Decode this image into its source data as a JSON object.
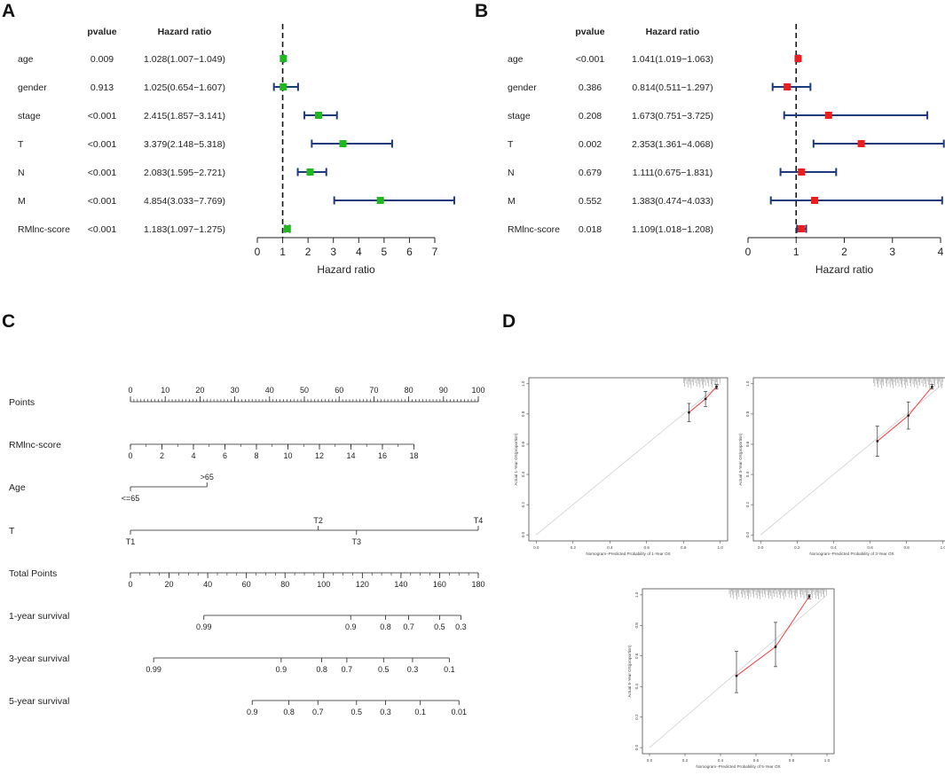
{
  "chart_data": [
    {
      "type": "forest",
      "panel": "A",
      "header_pvalue": "pvalue",
      "header_hr": "Hazard ratio",
      "xlabel": "Hazard ratio",
      "xlim": [
        0,
        7
      ],
      "xticks": [
        "0",
        "1",
        "2",
        "3",
        "4",
        "5",
        "6",
        "7"
      ],
      "ref_line": 1,
      "marker_color": "#1fb81f",
      "rows": [
        {
          "label": "age",
          "pvalue": "0.009",
          "hr_text": "1.028(1.007−1.049)",
          "hr": 1.028,
          "lo": 1.007,
          "hi": 1.049
        },
        {
          "label": "gender",
          "pvalue": "0.913",
          "hr_text": "1.025(0.654−1.607)",
          "hr": 1.025,
          "lo": 0.654,
          "hi": 1.607
        },
        {
          "label": "stage",
          "pvalue": "<0.001",
          "hr_text": "2.415(1.857−3.141)",
          "hr": 2.415,
          "lo": 1.857,
          "hi": 3.141
        },
        {
          "label": "T",
          "pvalue": "<0.001",
          "hr_text": "3.379(2.148−5.318)",
          "hr": 3.379,
          "lo": 2.148,
          "hi": 5.318
        },
        {
          "label": "N",
          "pvalue": "<0.001",
          "hr_text": "2.083(1.595−2.721)",
          "hr": 2.083,
          "lo": 1.595,
          "hi": 2.721
        },
        {
          "label": "M",
          "pvalue": "<0.001",
          "hr_text": "4.854(3.033−7.769)",
          "hr": 4.854,
          "lo": 3.033,
          "hi": 7.769
        },
        {
          "label": "RMlnc-score",
          "pvalue": "<0.001",
          "hr_text": "1.183(1.097−1.275)",
          "hr": 1.183,
          "lo": 1.097,
          "hi": 1.275
        }
      ]
    },
    {
      "type": "forest",
      "panel": "B",
      "header_pvalue": "pvalue",
      "header_hr": "Hazard ratio",
      "xlabel": "Hazard ratio",
      "xlim": [
        0,
        4
      ],
      "xticks": [
        "0",
        "1",
        "2",
        "3",
        "4"
      ],
      "ref_line": 1,
      "marker_color": "#ee1c1c",
      "rows": [
        {
          "label": "age",
          "pvalue": "<0.001",
          "hr_text": "1.041(1.019−1.063)",
          "hr": 1.041,
          "lo": 1.019,
          "hi": 1.063
        },
        {
          "label": "gender",
          "pvalue": "0.386",
          "hr_text": "0.814(0.511−1.297)",
          "hr": 0.814,
          "lo": 0.511,
          "hi": 1.297
        },
        {
          "label": "stage",
          "pvalue": "0.208",
          "hr_text": "1.673(0.751−3.725)",
          "hr": 1.673,
          "lo": 0.751,
          "hi": 3.725
        },
        {
          "label": "T",
          "pvalue": "0.002",
          "hr_text": "2.353(1.361−4.068)",
          "hr": 2.353,
          "lo": 1.361,
          "hi": 4.068
        },
        {
          "label": "N",
          "pvalue": "0.679",
          "hr_text": "1.111(0.675−1.831)",
          "hr": 1.111,
          "lo": 0.675,
          "hi": 1.831
        },
        {
          "label": "M",
          "pvalue": "0.552",
          "hr_text": "1.383(0.474−4.033)",
          "hr": 1.383,
          "lo": 0.474,
          "hi": 4.033
        },
        {
          "label": "RMlnc-score",
          "pvalue": "0.018",
          "hr_text": "1.109(1.018−1.208)",
          "hr": 1.109,
          "lo": 1.018,
          "hi": 1.208
        }
      ]
    },
    {
      "type": "nomogram",
      "panel": "C",
      "scales": [
        {
          "label": "Points",
          "lo": 0,
          "hi": 100,
          "major": [
            "0",
            "10",
            "20",
            "30",
            "40",
            "50",
            "60",
            "70",
            "80",
            "90",
            "100"
          ],
          "minor_step": 1,
          "labels_above": true
        },
        {
          "label": "RMlnc-score",
          "lo": 0,
          "hi": 18,
          "major": [
            "0",
            "2",
            "4",
            "6",
            "8",
            "10",
            "12",
            "14",
            "16",
            "18"
          ],
          "minor_step": 1,
          "points_at_lo": 0,
          "points_at_hi": 81.5
        },
        {
          "label": "Age",
          "categories": [
            {
              "text": "<=65",
              "points": 0,
              "pos": "below"
            },
            {
              "text": ">65",
              "points": 22,
              "pos": "above"
            }
          ]
        },
        {
          "label": "T",
          "categories": [
            {
              "text": "T1",
              "points": 0,
              "pos": "below"
            },
            {
              "text": "T2",
              "points": 54,
              "pos": "above"
            },
            {
              "text": "T3",
              "points": 65,
              "pos": "below"
            },
            {
              "text": "T4",
              "points": 100,
              "pos": "above"
            }
          ]
        },
        {
          "label": "Total Points",
          "lo": 0,
          "hi": 180,
          "major": [
            "0",
            "20",
            "40",
            "60",
            "80",
            "100",
            "120",
            "140",
            "160",
            "180"
          ],
          "minor_step": 5
        },
        {
          "label": "1-year survival",
          "total_points_axis": true,
          "ticks": [
            {
              "text": "0.99",
              "tp": 38
            },
            {
              "text": "0.9",
              "tp": 114
            },
            {
              "text": "0.8",
              "tp": 132
            },
            {
              "text": "0.7",
              "tp": 144
            },
            {
              "text": "0.5",
              "tp": 160
            },
            {
              "text": "0.3",
              "tp": 171
            }
          ]
        },
        {
          "label": "3-year survival",
          "total_points_axis": true,
          "ticks": [
            {
              "text": "0.99",
              "tp": 12
            },
            {
              "text": "0.9",
              "tp": 78
            },
            {
              "text": "0.8",
              "tp": 99
            },
            {
              "text": "0.7",
              "tp": 112
            },
            {
              "text": "0.5",
              "tp": 131
            },
            {
              "text": "0.3",
              "tp": 146
            },
            {
              "text": "0.1",
              "tp": 165
            }
          ]
        },
        {
          "label": "5-year survival",
          "total_points_axis": true,
          "ticks": [
            {
              "text": "0.9",
              "tp": 63
            },
            {
              "text": "0.8",
              "tp": 82
            },
            {
              "text": "0.7",
              "tp": 97
            },
            {
              "text": "0.5",
              "tp": 117
            },
            {
              "text": "0.3",
              "tp": 132
            },
            {
              "text": "0.1",
              "tp": 150
            },
            {
              "text": "0.01",
              "tp": 170
            }
          ]
        }
      ]
    },
    {
      "type": "calibration",
      "panel": "D",
      "plots": [
        {
          "ylabel": "Actual 1-Year OS(proportion)",
          "xlabel": "Nomogram−Predicted Probability of 1-Year OS",
          "xlim": [
            0,
            1
          ],
          "ylim": [
            0,
            1
          ],
          "ticks": [
            "0.0",
            "0.2",
            "0.4",
            "0.6",
            "0.8",
            "1.0"
          ],
          "points": [
            {
              "x": 0.83,
              "y": 0.81,
              "lo": 0.75,
              "hi": 0.87
            },
            {
              "x": 0.92,
              "y": 0.9,
              "lo": 0.85,
              "hi": 0.95
            },
            {
              "x": 0.98,
              "y": 0.98,
              "lo": 0.965,
              "hi": 0.995
            }
          ],
          "rug_start": 0.8
        },
        {
          "ylabel": "Actual 3-Year OS(proportion)",
          "xlabel": "Nomogram−Predicted Probability of 3-Year OS",
          "xlim": [
            0,
            1
          ],
          "ylim": [
            0,
            1
          ],
          "ticks": [
            "0.0",
            "0.2",
            "0.4",
            "0.6",
            "0.8",
            "1.0"
          ],
          "points": [
            {
              "x": 0.64,
              "y": 0.62,
              "lo": 0.52,
              "hi": 0.72
            },
            {
              "x": 0.81,
              "y": 0.79,
              "lo": 0.7,
              "hi": 0.88
            },
            {
              "x": 0.94,
              "y": 0.98,
              "lo": 0.965,
              "hi": 0.995
            }
          ],
          "rug_start": 0.62
        },
        {
          "ylabel": "Actual 5-Year OS(proportion)",
          "xlabel": "Nomogram−Predicted Probability of 5-Year OS",
          "xlim": [
            0,
            1
          ],
          "ylim": [
            0,
            1
          ],
          "ticks": [
            "0.0",
            "0.2",
            "0.4",
            "0.6",
            "0.8",
            "1.0"
          ],
          "points": [
            {
              "x": 0.49,
              "y": 0.47,
              "lo": 0.36,
              "hi": 0.63
            },
            {
              "x": 0.71,
              "y": 0.66,
              "lo": 0.53,
              "hi": 0.82
            },
            {
              "x": 0.9,
              "y": 0.99,
              "lo": 0.975,
              "hi": 1.0
            }
          ],
          "rug_start": 0.45
        }
      ]
    }
  ],
  "panel_letters": {
    "a": "A",
    "b": "B",
    "c": "C",
    "d": "D"
  }
}
